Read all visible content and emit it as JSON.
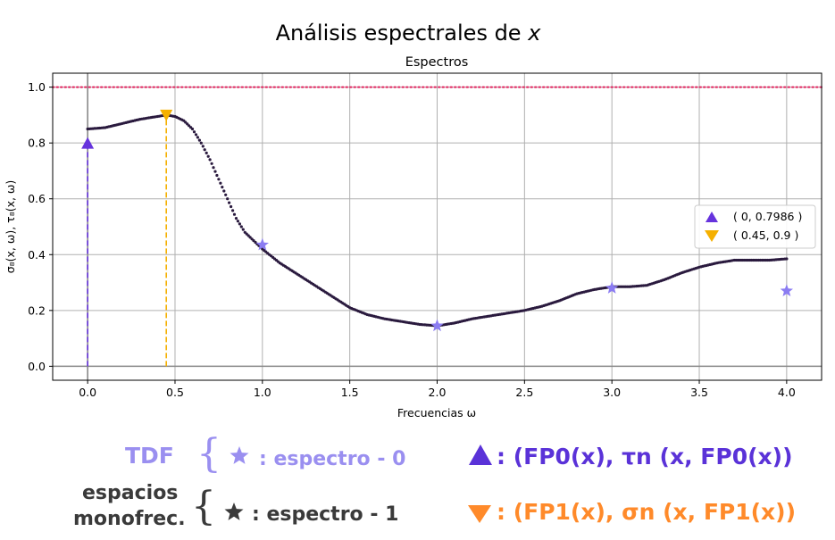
{
  "chart_data": {
    "type": "line",
    "suptitle_main": "Análisis espectrales de ",
    "suptitle_var": "x",
    "title": "Espectros",
    "xlabel": "Frecuencias ω",
    "ylabel": "σ₈(x, ω), τ₈(x, ω)",
    "xlim": [
      -0.2,
      4.2
    ],
    "ylim": [
      -0.05,
      1.05
    ],
    "xticks": [
      0.0,
      0.5,
      1.0,
      1.5,
      2.0,
      2.5,
      3.0,
      3.5,
      4.0
    ],
    "xtick_labels": [
      "0.0",
      "0.5",
      "1.0",
      "1.5",
      "2.0",
      "2.5",
      "3.0",
      "3.5",
      "4.0"
    ],
    "yticks": [
      0.0,
      0.2,
      0.4,
      0.6,
      0.8,
      1.0
    ],
    "ytick_labels": [
      "0.0",
      "0.2",
      "0.4",
      "0.6",
      "0.8",
      "1.0"
    ],
    "grid": true,
    "reference_line": {
      "y": 1.0,
      "style": "dotted",
      "color": "#e0245e"
    },
    "series": [
      {
        "kind": "dotted-curve",
        "color": "#2a1a3e",
        "x": [
          0.0,
          0.1,
          0.2,
          0.3,
          0.4,
          0.45,
          0.5,
          0.55,
          0.6,
          0.65,
          0.7,
          0.75,
          0.8,
          0.85,
          0.9,
          0.95,
          1.0,
          1.1,
          1.2,
          1.3,
          1.4,
          1.5,
          1.6,
          1.7,
          1.8,
          1.9,
          2.0,
          2.1,
          2.2,
          2.3,
          2.4,
          2.5,
          2.6,
          2.7,
          2.8,
          2.9,
          3.0,
          3.1,
          3.2,
          3.3,
          3.4,
          3.5,
          3.6,
          3.7,
          3.8,
          3.9,
          4.0
        ],
        "y": [
          0.85,
          0.855,
          0.87,
          0.885,
          0.895,
          0.9,
          0.895,
          0.88,
          0.85,
          0.8,
          0.74,
          0.67,
          0.6,
          0.53,
          0.48,
          0.45,
          0.42,
          0.37,
          0.33,
          0.29,
          0.25,
          0.21,
          0.185,
          0.17,
          0.16,
          0.15,
          0.145,
          0.155,
          0.17,
          0.18,
          0.19,
          0.2,
          0.215,
          0.235,
          0.26,
          0.275,
          0.285,
          0.285,
          0.29,
          0.31,
          0.335,
          0.355,
          0.37,
          0.38,
          0.38,
          0.38,
          0.385
        ]
      },
      {
        "kind": "star-markers",
        "color": "#8b7cf2",
        "x": [
          1.0,
          2.0,
          3.0,
          4.0
        ],
        "y": [
          0.435,
          0.145,
          0.28,
          0.27
        ]
      }
    ],
    "highlights": [
      {
        "marker": "triangle-up",
        "color": "#6633dd",
        "x": 0,
        "y": 0.7986,
        "label": "( 0, 0.7986 )"
      },
      {
        "marker": "triangle-down",
        "color": "#f5b000",
        "x": 0.45,
        "y": 0.9,
        "label": "( 0.45, 0.9 )"
      }
    ],
    "legend_position": "center-right"
  },
  "annotations": {
    "tdf": "TDF",
    "brace": "{",
    "espectro0": ": espectro - 0",
    "espacios": "espacios",
    "monofrec": "monofrec.",
    "espectro1": ": espectro - 1",
    "fp0": ": (FP0(x), τn (x, FP0(x))",
    "fp1": ": (FP1(x), σn (x, FP1(x))",
    "colors": {
      "light_purple": "#9a8ff0",
      "dark": "#3a3a3a",
      "purple": "#5a32d8",
      "orange": "#ff8a2a"
    }
  }
}
